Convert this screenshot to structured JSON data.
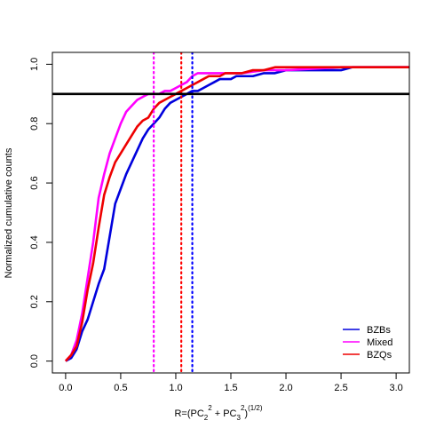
{
  "chart_data": {
    "type": "line",
    "title": "",
    "xlabel": "R=(PC₂² + PC₃²)^(1/2)",
    "ylabel": "Normalized cumulative counts",
    "xlim": [
      -0.12,
      3.12
    ],
    "ylim": [
      -0.04,
      1.04
    ],
    "x_ticks": [
      0.0,
      0.5,
      1.0,
      1.5,
      2.0,
      2.5,
      3.0
    ],
    "x_tick_labels": [
      "0.0",
      "0.5",
      "1.0",
      "1.5",
      "2.0",
      "2.5",
      "3.0"
    ],
    "y_ticks": [
      0.0,
      0.2,
      0.4,
      0.6,
      0.8,
      1.0
    ],
    "y_tick_labels": [
      "0.0",
      "0.2",
      "0.4",
      "0.6",
      "0.8",
      "1.0"
    ],
    "grid": false,
    "legend_position": "bottom-right",
    "horizontal_line": {
      "y": 0.9,
      "color": "#000000"
    },
    "vertical_lines": [
      {
        "x": 0.8,
        "color": "#ff00ff",
        "style": "dotted"
      },
      {
        "x": 1.05,
        "color": "#ff0000",
        "style": "dotted"
      },
      {
        "x": 1.15,
        "color": "#0000ff",
        "style": "dotted"
      }
    ],
    "series": [
      {
        "name": "BZBs",
        "color": "#0000dd",
        "x": [
          0.0,
          0.05,
          0.1,
          0.15,
          0.2,
          0.25,
          0.3,
          0.35,
          0.4,
          0.45,
          0.5,
          0.55,
          0.6,
          0.65,
          0.7,
          0.75,
          0.8,
          0.85,
          0.9,
          0.95,
          1.0,
          1.05,
          1.1,
          1.15,
          1.2,
          1.25,
          1.3,
          1.35,
          1.4,
          1.45,
          1.5,
          1.55,
          1.6,
          1.7,
          1.8,
          1.9,
          2.0,
          2.1,
          2.2,
          2.3,
          2.5,
          2.6,
          3.0,
          3.12
        ],
        "y": [
          0.0,
          0.01,
          0.04,
          0.1,
          0.14,
          0.2,
          0.26,
          0.31,
          0.42,
          0.53,
          0.58,
          0.63,
          0.67,
          0.71,
          0.75,
          0.78,
          0.8,
          0.82,
          0.85,
          0.87,
          0.88,
          0.89,
          0.9,
          0.91,
          0.91,
          0.92,
          0.93,
          0.94,
          0.95,
          0.95,
          0.95,
          0.96,
          0.96,
          0.96,
          0.97,
          0.97,
          0.98,
          0.98,
          0.98,
          0.98,
          0.98,
          0.99,
          0.99,
          0.99
        ]
      },
      {
        "name": "Mixed",
        "color": "#ff00ff",
        "x": [
          0.0,
          0.05,
          0.1,
          0.15,
          0.2,
          0.25,
          0.3,
          0.35,
          0.4,
          0.45,
          0.5,
          0.55,
          0.6,
          0.65,
          0.7,
          0.75,
          0.8,
          0.85,
          0.9,
          0.95,
          1.0,
          1.05,
          1.1,
          1.15,
          1.2,
          1.25,
          1.3,
          1.4,
          1.6,
          1.8,
          2.0,
          2.5,
          3.0,
          3.12
        ],
        "y": [
          0.0,
          0.02,
          0.07,
          0.16,
          0.28,
          0.4,
          0.55,
          0.63,
          0.7,
          0.75,
          0.8,
          0.84,
          0.86,
          0.88,
          0.89,
          0.9,
          0.9,
          0.9,
          0.91,
          0.91,
          0.92,
          0.93,
          0.94,
          0.96,
          0.97,
          0.97,
          0.97,
          0.97,
          0.97,
          0.98,
          0.98,
          0.99,
          0.99,
          0.99
        ]
      },
      {
        "name": "BZQs",
        "color": "#ee0000",
        "x": [
          0.0,
          0.05,
          0.1,
          0.15,
          0.2,
          0.25,
          0.3,
          0.35,
          0.4,
          0.45,
          0.5,
          0.55,
          0.6,
          0.65,
          0.7,
          0.75,
          0.8,
          0.85,
          0.9,
          0.95,
          1.0,
          1.05,
          1.1,
          1.15,
          1.2,
          1.25,
          1.3,
          1.35,
          1.4,
          1.45,
          1.5,
          1.6,
          1.7,
          1.8,
          1.9,
          2.0,
          2.2,
          2.5,
          3.0,
          3.12
        ],
        "y": [
          0.0,
          0.02,
          0.05,
          0.13,
          0.24,
          0.33,
          0.45,
          0.56,
          0.62,
          0.67,
          0.7,
          0.73,
          0.76,
          0.79,
          0.81,
          0.82,
          0.85,
          0.87,
          0.88,
          0.89,
          0.9,
          0.91,
          0.92,
          0.93,
          0.94,
          0.95,
          0.96,
          0.96,
          0.96,
          0.97,
          0.97,
          0.97,
          0.98,
          0.98,
          0.99,
          0.99,
          0.99,
          0.99,
          0.99,
          0.99
        ]
      }
    ]
  }
}
